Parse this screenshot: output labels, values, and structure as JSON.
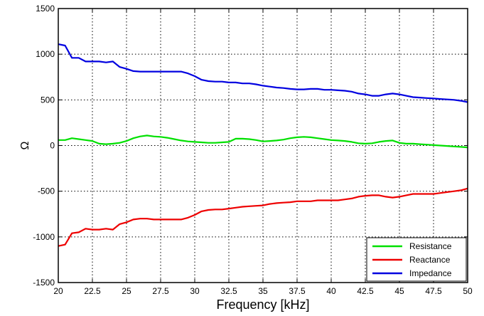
{
  "chart_data": {
    "type": "line",
    "title": "",
    "xlabel": "Frequency [kHz]",
    "ylabel": "Ω",
    "xlim": [
      20,
      50
    ],
    "ylim": [
      -1500,
      1500
    ],
    "xticks": [
      "20",
      "22.5",
      "25",
      "27.5",
      "30",
      "32.5",
      "35",
      "37.5",
      "40",
      "42.5",
      "45",
      "47.5",
      "50"
    ],
    "yticks": [
      "1500",
      "1000",
      "500",
      "0",
      "-500",
      "-1000",
      "-1500"
    ],
    "grid": true,
    "legend_position": "bottom-right",
    "series": [
      {
        "name": "Resistance",
        "color": "#00e000",
        "x": [
          20,
          20.5,
          21,
          21.5,
          22,
          22.5,
          23,
          23.5,
          24,
          24.5,
          25,
          25.5,
          26,
          26.5,
          27,
          27.5,
          28,
          28.5,
          29,
          29.5,
          30,
          30.5,
          31,
          31.5,
          32,
          32.5,
          33,
          33.5,
          34,
          34.5,
          35,
          35.5,
          36,
          36.5,
          37,
          37.5,
          38,
          38.5,
          39,
          39.5,
          40,
          40.5,
          41,
          41.5,
          42,
          42.5,
          43,
          43.5,
          44,
          44.5,
          45,
          45.5,
          46,
          46.5,
          47,
          47.5,
          48,
          48.5,
          49,
          49.5,
          50
        ],
        "values": [
          60,
          60,
          80,
          70,
          60,
          50,
          20,
          15,
          20,
          30,
          50,
          80,
          100,
          110,
          100,
          95,
          85,
          70,
          55,
          45,
          40,
          35,
          30,
          30,
          35,
          40,
          75,
          75,
          70,
          60,
          45,
          50,
          55,
          65,
          80,
          90,
          95,
          90,
          80,
          70,
          60,
          55,
          50,
          40,
          25,
          20,
          25,
          40,
          50,
          55,
          30,
          20,
          20,
          15,
          10,
          5,
          0,
          -5,
          -10,
          -15,
          -20
        ]
      },
      {
        "name": "Reactance",
        "color": "#ee0000",
        "x": [
          20,
          20.5,
          21,
          21.5,
          22,
          22.5,
          23,
          23.5,
          24,
          24.5,
          25,
          25.5,
          26,
          26.5,
          27,
          27.5,
          28,
          28.5,
          29,
          29.5,
          30,
          30.5,
          31,
          31.5,
          32,
          32.5,
          33,
          33.5,
          34,
          34.5,
          35,
          35.5,
          36,
          36.5,
          37,
          37.5,
          38,
          38.5,
          39,
          39.5,
          40,
          40.5,
          41,
          41.5,
          42,
          42.5,
          43,
          43.5,
          44,
          44.5,
          45,
          45.5,
          46,
          46.5,
          47,
          47.5,
          48,
          48.5,
          49,
          49.5,
          50
        ],
        "values": [
          -1100,
          -1085,
          -960,
          -950,
          -910,
          -920,
          -920,
          -910,
          -920,
          -860,
          -840,
          -810,
          -800,
          -800,
          -810,
          -810,
          -810,
          -810,
          -810,
          -790,
          -760,
          -720,
          -705,
          -700,
          -700,
          -690,
          -680,
          -670,
          -665,
          -660,
          -655,
          -640,
          -630,
          -625,
          -620,
          -610,
          -610,
          -610,
          -600,
          -600,
          -600,
          -600,
          -590,
          -580,
          -560,
          -550,
          -545,
          -545,
          -560,
          -570,
          -560,
          -545,
          -530,
          -530,
          -530,
          -530,
          -520,
          -510,
          -500,
          -490,
          -470
        ]
      },
      {
        "name": "Impedance",
        "color": "#0000e0",
        "x": [
          20,
          20.5,
          21,
          21.5,
          22,
          22.5,
          23,
          23.5,
          24,
          24.5,
          25,
          25.5,
          26,
          26.5,
          27,
          27.5,
          28,
          28.5,
          29,
          29.5,
          30,
          30.5,
          31,
          31.5,
          32,
          32.5,
          33,
          33.5,
          34,
          34.5,
          35,
          35.5,
          36,
          36.5,
          37,
          37.5,
          38,
          38.5,
          39,
          39.5,
          40,
          40.5,
          41,
          41.5,
          42,
          42.5,
          43,
          43.5,
          44,
          44.5,
          45,
          45.5,
          46,
          46.5,
          47,
          47.5,
          48,
          48.5,
          49,
          49.5,
          50
        ],
        "values": [
          1110,
          1095,
          960,
          960,
          920,
          920,
          920,
          910,
          920,
          860,
          840,
          815,
          810,
          810,
          810,
          810,
          810,
          810,
          810,
          790,
          760,
          720,
          705,
          700,
          700,
          690,
          690,
          680,
          680,
          670,
          655,
          645,
          635,
          630,
          620,
          615,
          615,
          620,
          620,
          610,
          610,
          605,
          600,
          590,
          570,
          560,
          545,
          545,
          560,
          570,
          560,
          545,
          530,
          525,
          520,
          515,
          510,
          505,
          500,
          490,
          475
        ]
      }
    ]
  }
}
